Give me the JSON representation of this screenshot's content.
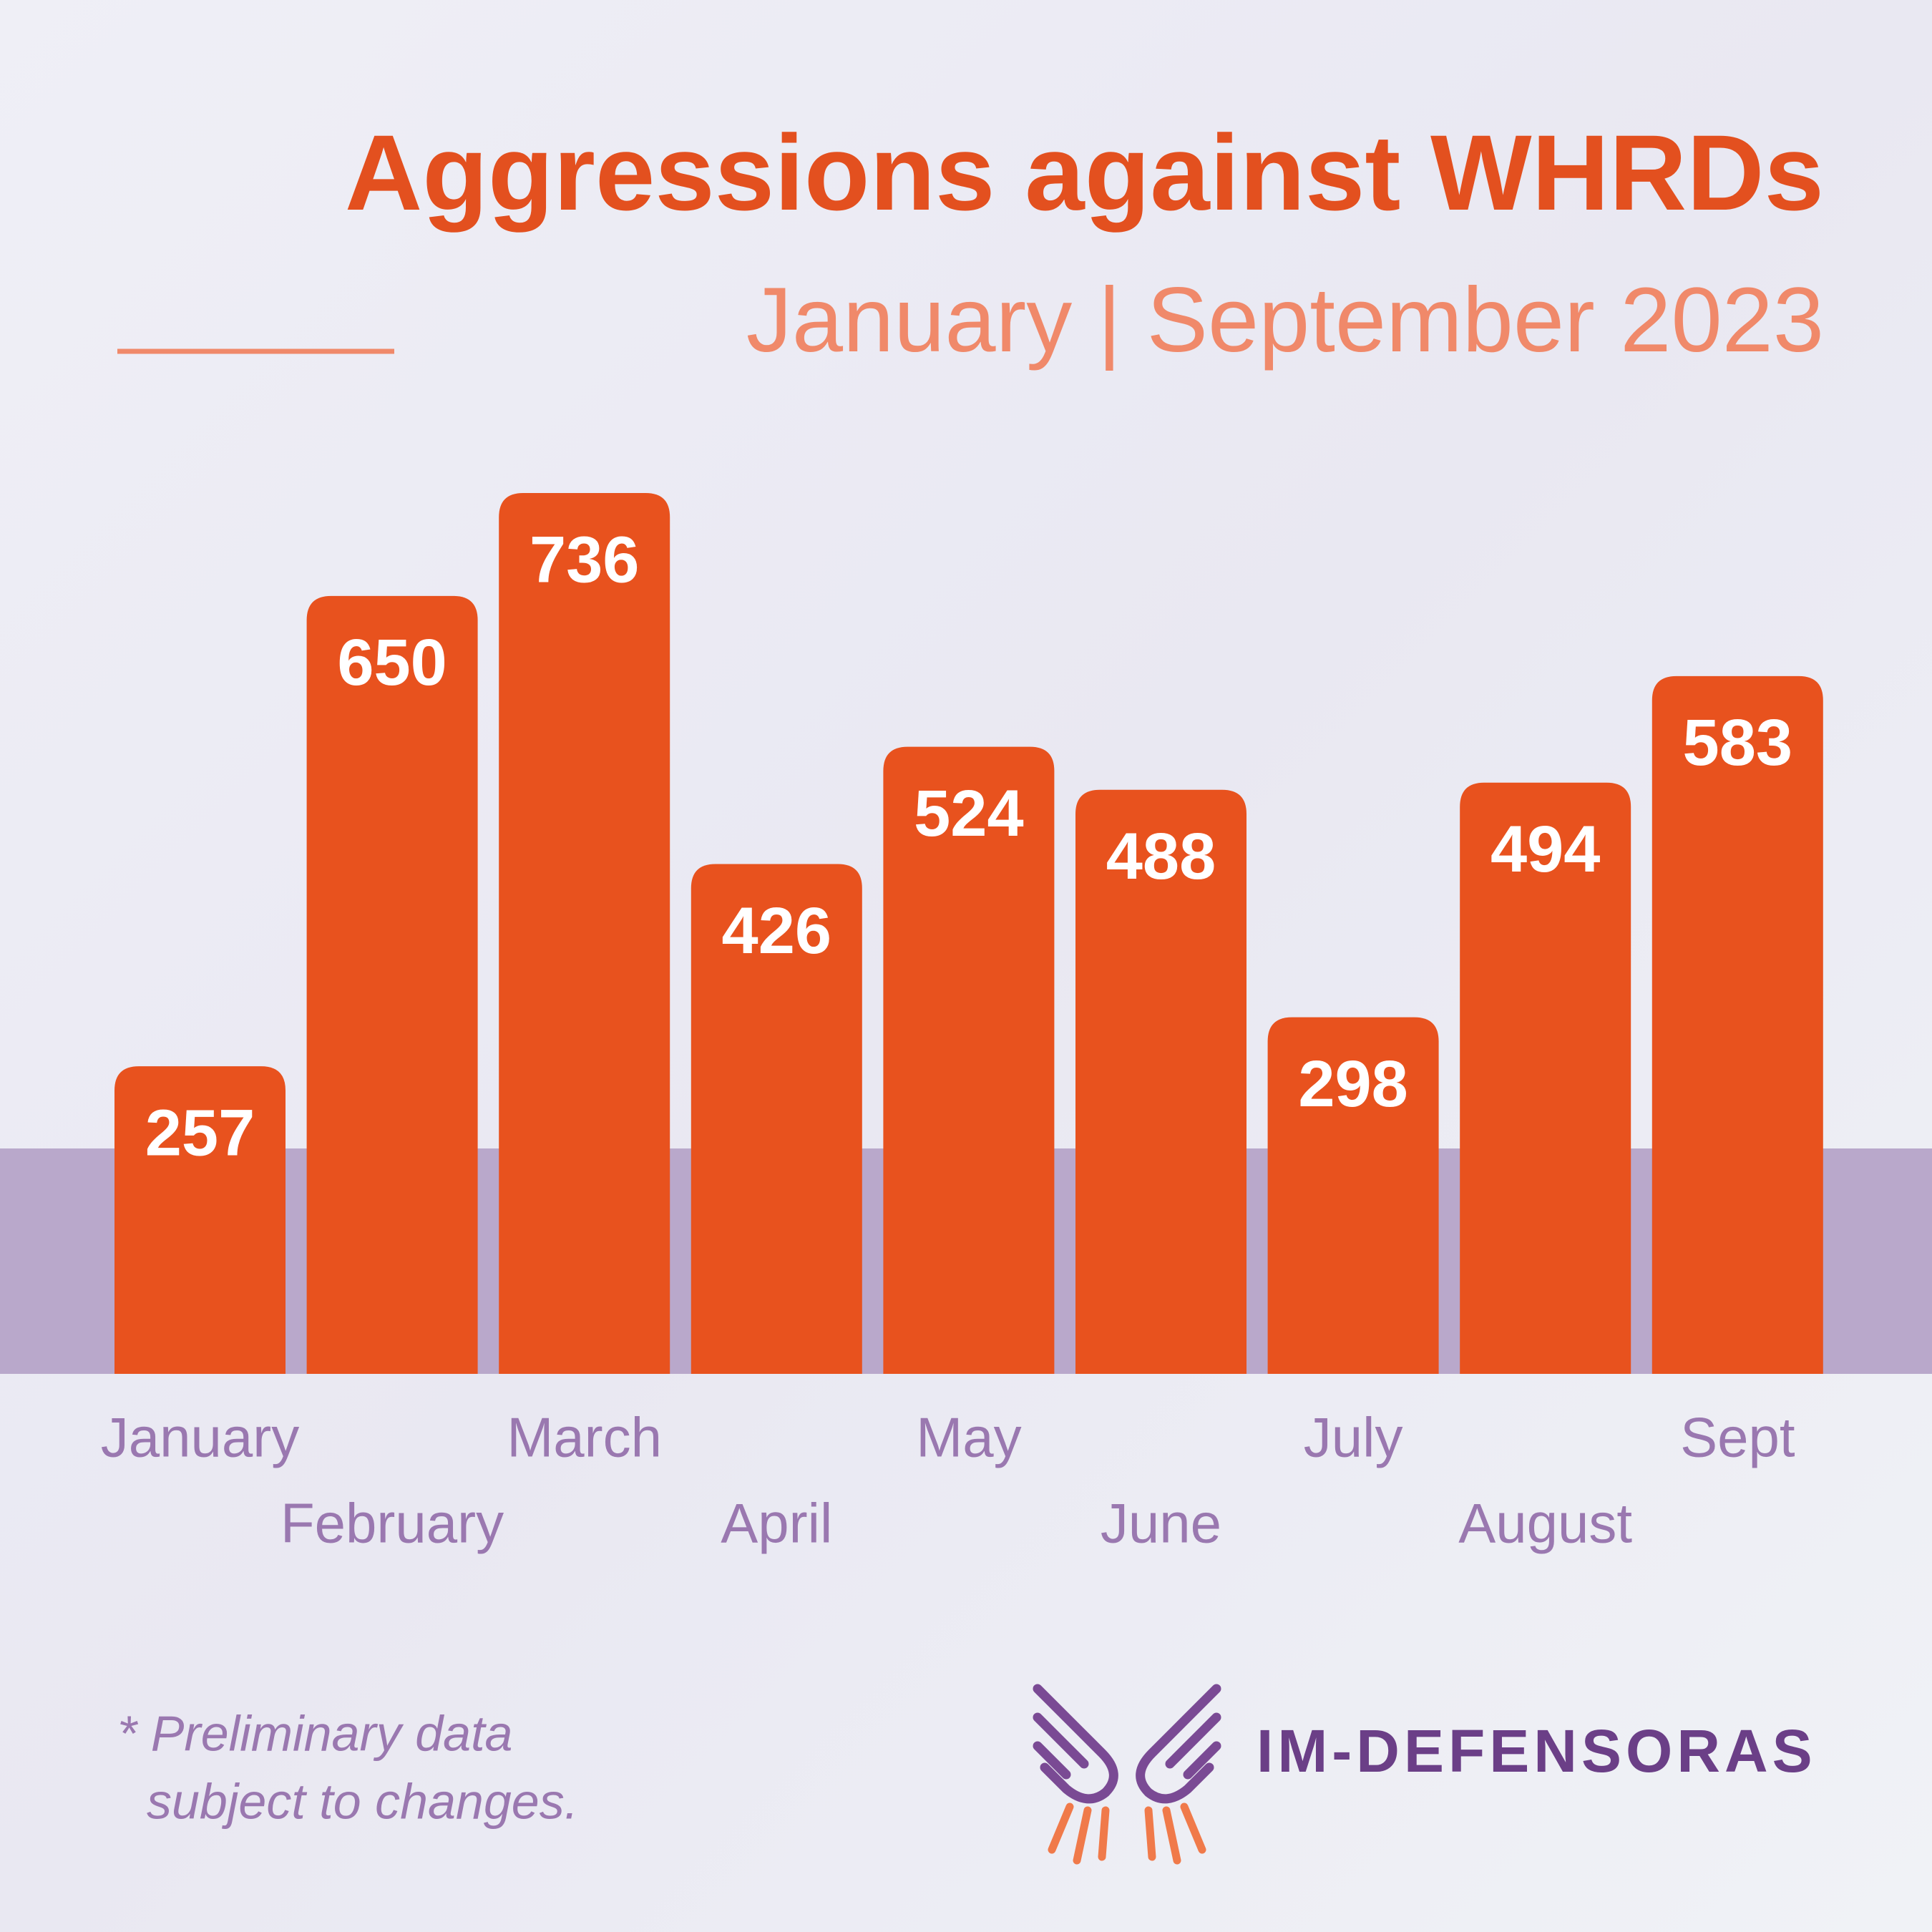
{
  "chart_data": {
    "type": "bar",
    "title": "Aggressions against WHRDs",
    "subtitle": "January | September 2023",
    "categories": [
      "January",
      "February",
      "March",
      "April",
      "May",
      "June",
      "July",
      "August",
      "Sept"
    ],
    "values": [
      257,
      650,
      736,
      426,
      524,
      488,
      298,
      494,
      583
    ],
    "color": "#e8521e",
    "note": [
      "* Preliminary data",
      "subject to changes."
    ],
    "brand": "IM-DEFENSORAS"
  }
}
